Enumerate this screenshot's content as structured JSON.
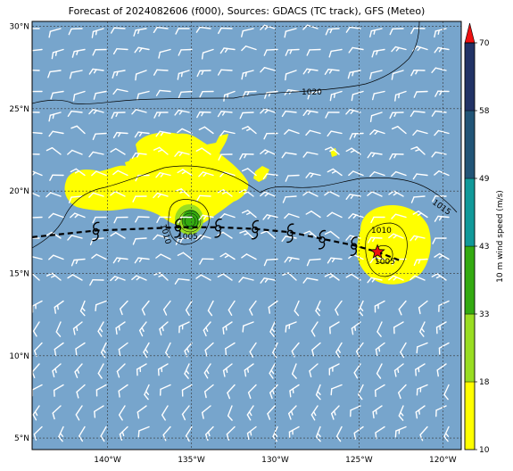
{
  "title": "Forecast of 2024082606 (f000), Sources: GDACS (TC track), GFS (Meteo)",
  "colors": {
    "ocean": "#77a5cc",
    "land_line": "#000000",
    "wind_barb": "#ffffff",
    "track": "#000000",
    "storm_star": "#ee1111"
  },
  "map": {
    "lon_range": [
      -144.5,
      -118.9
    ],
    "lat_range": [
      4.3,
      30.3
    ],
    "lon_ticks": [
      {
        "value": -140,
        "label": "140°W"
      },
      {
        "value": -135,
        "label": "135°W"
      },
      {
        "value": -130,
        "label": "130°W"
      },
      {
        "value": -125,
        "label": "125°W"
      },
      {
        "value": -120,
        "label": "120°W"
      }
    ],
    "lat_ticks": [
      {
        "value": 30,
        "label": "30°N"
      },
      {
        "value": 25,
        "label": "25°N"
      },
      {
        "value": 20,
        "label": "20°N"
      },
      {
        "value": 15,
        "label": "15°N"
      },
      {
        "value": 10,
        "label": "10°N"
      },
      {
        "value": 5,
        "label": "5°N"
      }
    ],
    "grid": true
  },
  "isobars": [
    {
      "label": "1020"
    },
    {
      "label": "1015"
    },
    {
      "label": "1010"
    },
    {
      "label": "1005"
    },
    {
      "label": "1010"
    },
    {
      "label": "1005"
    }
  ],
  "track": {
    "points": [
      {
        "lon": -144.5,
        "lat": 17.2
      },
      {
        "lon": -140.7,
        "lat": 17.6
      },
      {
        "lon": -138.2,
        "lat": 17.7
      },
      {
        "lon": -135.8,
        "lat": 17.8
      },
      {
        "lon": -133.4,
        "lat": 17.8
      },
      {
        "lon": -131.2,
        "lat": 17.7
      },
      {
        "lon": -129.1,
        "lat": 17.5
      },
      {
        "lon": -127.2,
        "lat": 17.1
      },
      {
        "lon": -125.3,
        "lat": 16.7
      },
      {
        "lon": -123.9,
        "lat": 16.3
      },
      {
        "lon": -122.6,
        "lat": 15.8
      }
    ],
    "symbols": [
      {
        "lon": -140.7,
        "lat": 17.6
      },
      {
        "lon": -135.8,
        "lat": 17.8
      },
      {
        "lon": -133.4,
        "lat": 17.8
      },
      {
        "lon": -131.2,
        "lat": 17.7
      },
      {
        "lon": -129.1,
        "lat": 17.5
      },
      {
        "lon": -127.2,
        "lat": 17.1
      },
      {
        "lon": -125.3,
        "lat": 16.7
      }
    ],
    "current": {
      "lon": -123.9,
      "lat": 16.3
    }
  },
  "colorbar": {
    "label": "10 m wind speed (m/s)",
    "levels": [
      10,
      18,
      33,
      43,
      49,
      58,
      70
    ],
    "colors": [
      "#ffff00",
      "#99dd22",
      "#33aa11",
      "#119999",
      "#225577",
      "#223366"
    ],
    "extend_color": "#ee1111"
  }
}
